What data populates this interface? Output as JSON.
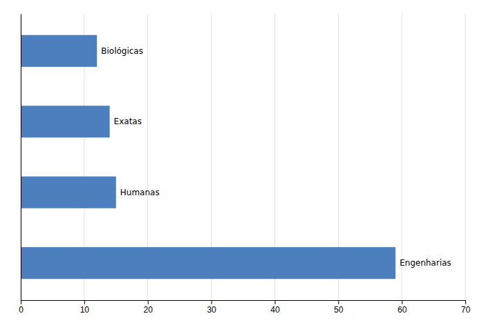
{
  "chart_data": {
    "type": "bar",
    "orientation": "horizontal",
    "categories": [
      "Engenharias",
      "Humanas",
      "Exatas",
      "Biológicas"
    ],
    "values": [
      59,
      15,
      14,
      12
    ],
    "color": "#4d7fbe",
    "xlim": [
      0,
      70
    ],
    "xticks": [
      0,
      10,
      20,
      30,
      40,
      50,
      60,
      70
    ],
    "grid": true,
    "tick_labels": "x"
  }
}
